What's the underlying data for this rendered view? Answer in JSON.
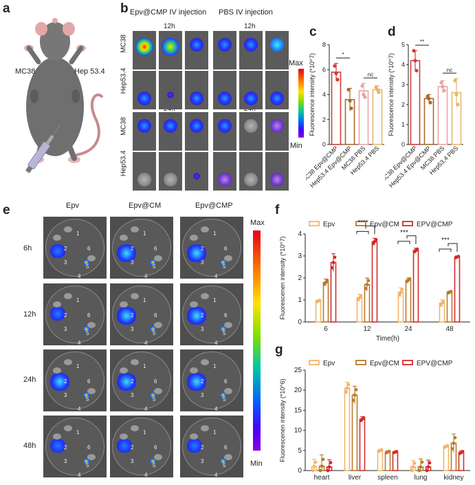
{
  "panels": {
    "a": "a",
    "b": "b",
    "c": "c",
    "d": "d",
    "e": "e",
    "f": "f",
    "g": "g"
  },
  "panel_a": {
    "left_label": "MC38",
    "right_label": "Hep 53.4"
  },
  "panel_b": {
    "group_left": "Epv@CMP IV injection",
    "group_right": "PBS IV injection",
    "time_top": "12h",
    "time_bottom": "24h",
    "row_labels": [
      "MC38",
      "Hep53.4",
      "MC38",
      "Hep53.4"
    ],
    "scale_max": "Max",
    "scale_min": "Min"
  },
  "panel_e": {
    "columns": [
      "Epv",
      "Epv@CM",
      "Epv@CMP"
    ],
    "rows": [
      "6h",
      "12h",
      "24h",
      "48h"
    ],
    "organ_numbers": [
      "1",
      "2",
      "3",
      "4",
      "5",
      "6"
    ],
    "scale_max": "Max",
    "scale_min": "Min"
  },
  "chart_data": [
    {
      "id": "c",
      "type": "bar",
      "ylabel": "Fluorescence intensity (*10^7)",
      "categories": [
        "MC38 Epv@CMP",
        "Hep53.4 Epv@CMP",
        "MC38 PBS",
        "Hep53.4 PBS"
      ],
      "values": [
        5.8,
        3.6,
        4.3,
        4.4
      ],
      "errors": [
        0.7,
        0.9,
        0.6,
        0.3
      ],
      "points": [
        [
          6.3,
          5.7,
          5.2
        ],
        [
          4.4,
          3.5,
          2.9
        ],
        [
          4.7,
          4.0,
          3.8
        ],
        [
          4.6,
          4.4,
          4.2
        ]
      ],
      "ylim": [
        0,
        8
      ],
      "yticks": [
        0,
        2,
        4,
        6,
        8
      ],
      "colors": [
        "#d63a3a",
        "#a86b2a",
        "#e9a3a3",
        "#e7b76a"
      ],
      "significance": [
        {
          "from": 0,
          "to": 1,
          "label": "*"
        },
        {
          "from": 2,
          "to": 3,
          "label": "nc"
        }
      ]
    },
    {
      "id": "d",
      "type": "bar",
      "ylabel": "Fluorescence intensity (*10^7)",
      "categories": [
        "MC38 Epv@CMP",
        "Hep53.4 Epv@CMP",
        "MC38 PBS",
        "Hep53.4 PBS"
      ],
      "values": [
        4.2,
        2.3,
        2.9,
        2.6
      ],
      "errors": [
        0.5,
        0.2,
        0.3,
        0.7
      ],
      "points": [
        [
          4.7,
          4.2,
          3.7
        ],
        [
          2.4,
          2.3,
          2.1
        ],
        [
          3.1,
          2.9,
          2.7
        ],
        [
          3.2,
          2.5,
          2.0
        ]
      ],
      "ylim": [
        0,
        5
      ],
      "yticks": [
        0,
        1,
        2,
        3,
        4,
        5
      ],
      "colors": [
        "#d63a3a",
        "#a86b2a",
        "#e9a3a3",
        "#e7b76a"
      ],
      "significance": [
        {
          "from": 0,
          "to": 1,
          "label": "**"
        },
        {
          "from": 2,
          "to": 3,
          "label": "nc"
        }
      ]
    },
    {
      "id": "f",
      "type": "bar",
      "xlabel": "Time(h)",
      "ylabel": "Fluorescenen intensity (*10^7)",
      "categories": [
        "6",
        "12",
        "24",
        "48"
      ],
      "series": [
        {
          "name": "Epv",
          "values": [
            0.95,
            1.1,
            1.35,
            0.85
          ],
          "errors": [
            0.05,
            0.15,
            0.2,
            0.15
          ],
          "color": "#f2b46b"
        },
        {
          "name": "Epv@CM",
          "values": [
            1.8,
            1.7,
            1.9,
            1.35
          ],
          "errors": [
            0.15,
            0.3,
            0.1,
            0.05
          ],
          "color": "#b87a2a"
        },
        {
          "name": "EPV@CMP",
          "values": [
            2.7,
            3.65,
            3.25,
            2.95
          ],
          "errors": [
            0.4,
            0.15,
            0.1,
            0.05
          ],
          "color": "#d42a2a"
        }
      ],
      "ylim": [
        0,
        4
      ],
      "yticks": [
        0,
        1,
        2,
        3,
        4
      ],
      "significance": [
        "****",
        "***",
        "***"
      ]
    },
    {
      "id": "g",
      "type": "bar",
      "ylabel": "Fluorescenen intensity (*10^6)",
      "categories": [
        "heart",
        "liver",
        "spleen",
        "lung",
        "kidney"
      ],
      "series": [
        {
          "name": "Epv",
          "values": [
            1.0,
            20.5,
            5.0,
            0.9,
            6.0
          ],
          "errors": [
            1.8,
            1.5,
            0.3,
            1.6,
            0.3
          ],
          "color": "#f2b46b"
        },
        {
          "name": "Epv@CM",
          "values": [
            1.1,
            18.8,
            4.6,
            0.9,
            6.8
          ],
          "errors": [
            2.8,
            2.2,
            0.3,
            2.0,
            2.3
          ],
          "color": "#b87a2a"
        },
        {
          "name": "EPV@CMP",
          "values": [
            0.9,
            12.8,
            4.6,
            0.9,
            4.5
          ],
          "errors": [
            1.8,
            0.6,
            0.2,
            1.7,
            0.4
          ],
          "color": "#d42a2a"
        }
      ],
      "ylim": [
        0,
        25
      ],
      "yticks": [
        0,
        5,
        10,
        15,
        20,
        25
      ]
    }
  ]
}
